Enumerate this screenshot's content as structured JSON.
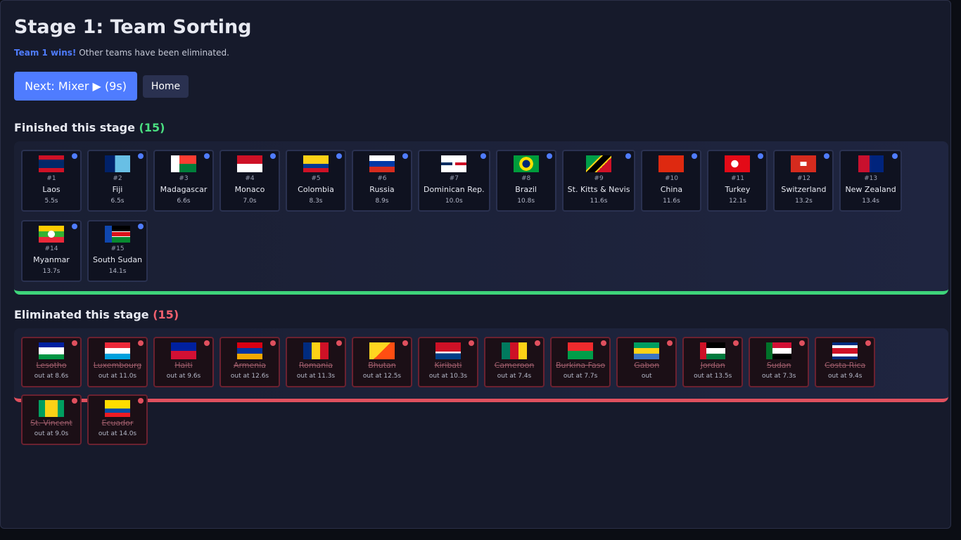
{
  "header": {
    "title": "Stage 1: Team Sorting",
    "status": {
      "winner": "Team 1 wins!",
      "message": "Other teams have been eliminated."
    }
  },
  "actions": {
    "next": "Next: Mixer ▶ (9s)",
    "home": "Home"
  },
  "finished": {
    "heading": "Finished this stage",
    "count": "(15)",
    "teams": [
      {
        "rank": "#1",
        "name": "Laos",
        "time": "5.5s"
      },
      {
        "rank": "#2",
        "name": "Fiji",
        "time": "6.5s"
      },
      {
        "rank": "#3",
        "name": "Madagascar",
        "time": "6.6s"
      },
      {
        "rank": "#4",
        "name": "Monaco",
        "time": "7.0s"
      },
      {
        "rank": "#5",
        "name": "Colombia",
        "time": "8.3s"
      },
      {
        "rank": "#6",
        "name": "Russia",
        "time": "8.9s"
      },
      {
        "rank": "#7",
        "name": "Dominican Rep.",
        "time": "10.0s"
      },
      {
        "rank": "#8",
        "name": "Brazil",
        "time": "10.8s"
      },
      {
        "rank": "#9",
        "name": "St. Kitts & Nevis",
        "time": "11.6s"
      },
      {
        "rank": "#10",
        "name": "China",
        "time": "11.6s"
      },
      {
        "rank": "#11",
        "name": "Turkey",
        "time": "12.1s"
      },
      {
        "rank": "#12",
        "name": "Switzerland",
        "time": "13.2s"
      },
      {
        "rank": "#13",
        "name": "New Zealand",
        "time": "13.4s"
      },
      {
        "rank": "#14",
        "name": "Myanmar",
        "time": "13.7s"
      },
      {
        "rank": "#15",
        "name": "South Sudan",
        "time": "14.1s"
      }
    ]
  },
  "eliminated": {
    "heading": "Eliminated this stage",
    "count": "(15)",
    "teams": [
      {
        "name": "Lesotho",
        "result": "out at 8.6s"
      },
      {
        "name": "Luxembourg",
        "result": "out at 11.0s"
      },
      {
        "name": "Haiti",
        "result": "out at 9.6s"
      },
      {
        "name": "Armenia",
        "result": "out at 12.6s"
      },
      {
        "name": "Romania",
        "result": "out at 11.3s"
      },
      {
        "name": "Bhutan",
        "result": "out at 12.5s"
      },
      {
        "name": "Kiribati",
        "result": "out at 10.3s"
      },
      {
        "name": "Cameroon",
        "result": "out at 7.4s"
      },
      {
        "name": "Burkina Faso",
        "result": "out at 7.7s"
      },
      {
        "name": "Gabon",
        "result": "out"
      },
      {
        "name": "Jordan",
        "result": "out at 13.5s"
      },
      {
        "name": "Sudan",
        "result": "out at 7.3s"
      },
      {
        "name": "Costa Rica",
        "result": "out at 9.4s"
      },
      {
        "name": "St. Vincent",
        "result": "out at 9.0s"
      },
      {
        "name": "Ecuador",
        "result": "out at 14.0s"
      }
    ]
  }
}
